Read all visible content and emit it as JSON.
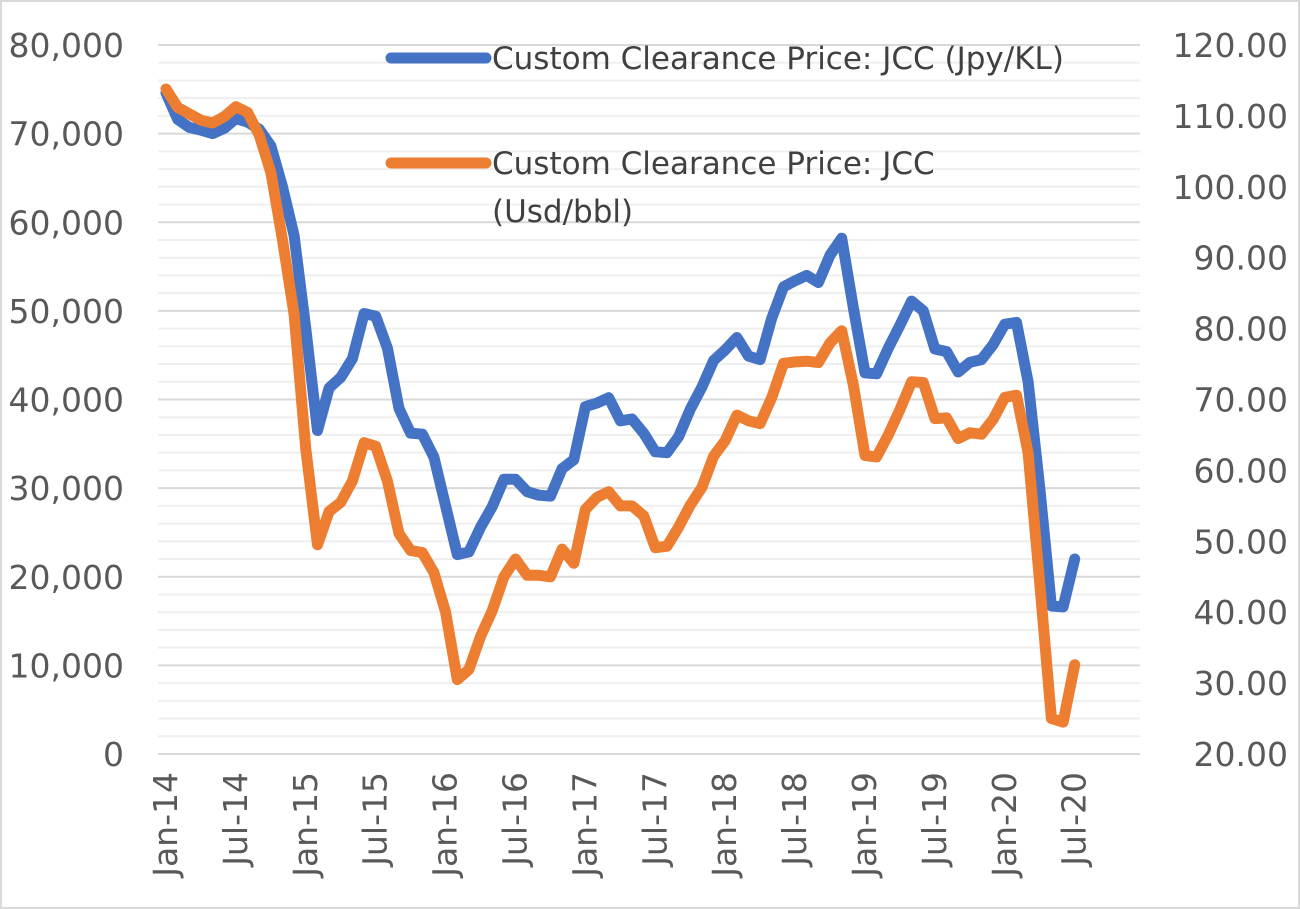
{
  "chart_data": {
    "type": "line",
    "title": "",
    "xlabel": "",
    "ylabel": "",
    "x_tick_labels": [
      "Jan-14",
      "Jul-14",
      "Jan-15",
      "Jul-15",
      "Jan-16",
      "Jul-16",
      "Jan-17",
      "Jul-17",
      "Jan-18",
      "Jul-18",
      "Jan-19",
      "Jul-19",
      "Jan-20",
      "Jul-20"
    ],
    "y_left": {
      "min": 0,
      "max": 80000,
      "ticks": [
        "0",
        "10,000",
        "20,000",
        "30,000",
        "40,000",
        "50,000",
        "60,000",
        "70,000",
        "80,000"
      ]
    },
    "y_right": {
      "min": 20,
      "max": 120,
      "ticks": [
        "20.00",
        "30.00",
        "40.00",
        "50.00",
        "60.00",
        "70.00",
        "80.00",
        "90.00",
        "100.00",
        "110.00",
        "120.00"
      ]
    },
    "series": [
      {
        "name": "Custom Clearance Price: JCC (Jpy/KL)",
        "axis": "left",
        "color": "#4472C4",
        "values": [
          74600,
          71600,
          70700,
          70400,
          70000,
          70600,
          71700,
          71300,
          70500,
          68600,
          64000,
          58500,
          48000,
          36500,
          41300,
          42500,
          44600,
          49700,
          49400,
          45800,
          39000,
          36200,
          36100,
          33500,
          28000,
          22500,
          22800,
          25600,
          27900,
          31000,
          31000,
          29600,
          29200,
          29100,
          32200,
          33200,
          39200,
          39600,
          40200,
          37600,
          37800,
          36200,
          34100,
          34000,
          35800,
          38900,
          41400,
          44400,
          45600,
          47000,
          44900,
          44500,
          49200,
          52700,
          53400,
          54000,
          53200,
          56300,
          58200,
          50300,
          43000,
          42900,
          45800,
          48400,
          51100,
          50000,
          45700,
          45400,
          43100,
          44200,
          44500,
          46200,
          48500,
          48700,
          42000,
          30000,
          16700,
          16600,
          22000
        ]
      },
      {
        "name": "Custom Clearance Price: JCC (Usd/bbl)",
        "axis": "right",
        "color": "#ED7D31",
        "legend_lines": [
          "Custom Clearance Price: JCC",
          "(Usd/bbl)"
        ],
        "values": [
          113.8,
          111.2,
          110.3,
          109.4,
          109.0,
          109.9,
          111.3,
          110.5,
          107.3,
          102.0,
          92.5,
          82.0,
          63.0,
          49.5,
          54.2,
          55.5,
          58.5,
          63.9,
          63.4,
          58.5,
          51.1,
          48.7,
          48.4,
          45.6,
          40.0,
          30.5,
          31.9,
          36.6,
          40.2,
          45.0,
          47.5,
          45.2,
          45.2,
          45.0,
          48.9,
          46.9,
          54.5,
          56.2,
          57.0,
          55.0,
          55.0,
          53.6,
          49.1,
          49.3,
          52.0,
          55.1,
          57.6,
          62.0,
          64.2,
          67.8,
          67.0,
          66.6,
          70.3,
          75.1,
          75.3,
          75.4,
          75.2,
          78.0,
          79.7,
          72.0,
          62.1,
          61.9,
          65.0,
          68.6,
          72.5,
          72.4,
          67.3,
          67.4,
          64.5,
          65.3,
          65.1,
          67.2,
          70.3,
          70.6,
          62.5,
          44.0,
          25.0,
          24.5,
          32.6
        ]
      }
    ],
    "legend_position": "top-center",
    "grid": true
  }
}
